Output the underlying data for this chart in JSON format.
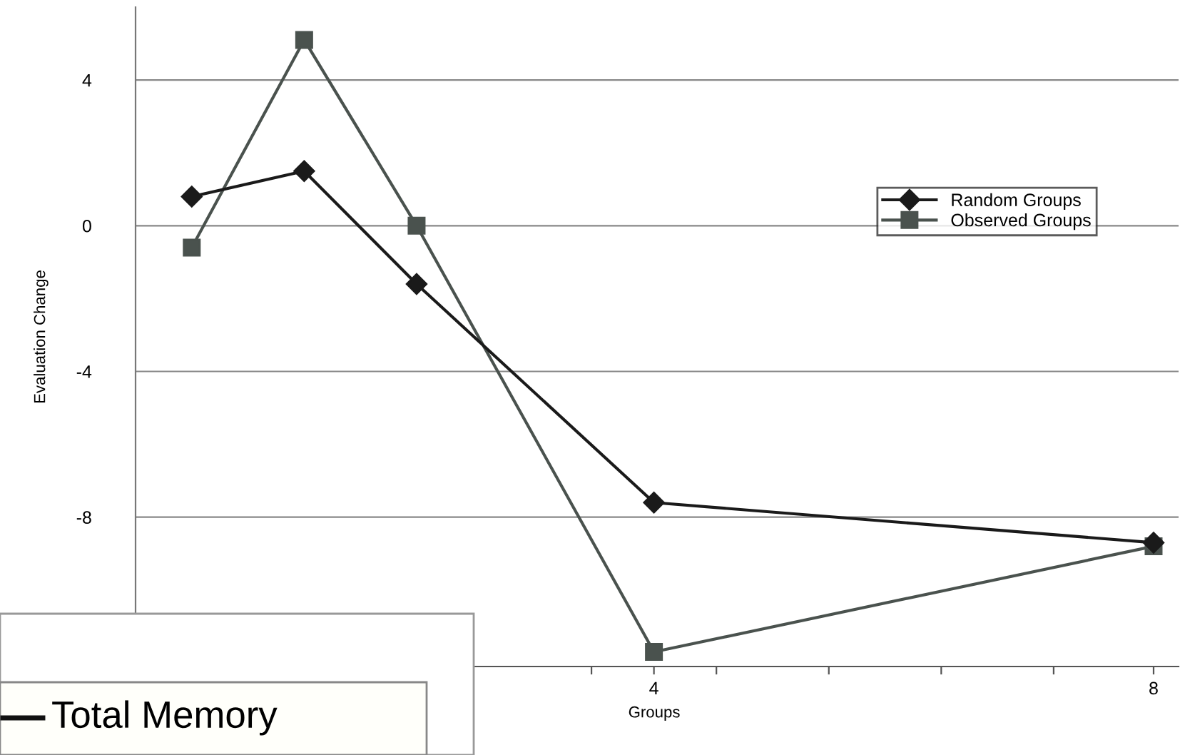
{
  "chart_data": {
    "type": "line",
    "ylabel": "Evaluation Change",
    "xlabel": "Groups",
    "x": [
      0.3,
      1.2,
      2.1,
      4,
      8
    ],
    "series": [
      {
        "name": "Random Groups",
        "color": "#1a1a1a",
        "marker": "diamond",
        "values": [
          0.8,
          1.5,
          -1.6,
          -7.6,
          -8.7
        ]
      },
      {
        "name": "Observed Groups",
        "color": "#4a524e",
        "marker": "square",
        "values": [
          -0.6,
          5.1,
          0.0,
          -11.7,
          -8.8
        ]
      }
    ],
    "xlim": [
      -0.15,
      8.2
    ],
    "xticks": [
      {
        "value": 3.5,
        "label": null
      },
      4,
      {
        "value": 4.5,
        "label": null
      },
      {
        "value": 5.4,
        "label": null
      },
      {
        "value": 6.3,
        "label": null
      },
      {
        "value": 7.2,
        "label": null
      },
      8
    ],
    "ylim": [
      -12.1,
      6
    ],
    "yticks": [
      -8,
      -4,
      0,
      4
    ],
    "grid": "y",
    "legend": "right",
    "line_style": "solid",
    "annotations": [
      "Total Memory"
    ]
  }
}
